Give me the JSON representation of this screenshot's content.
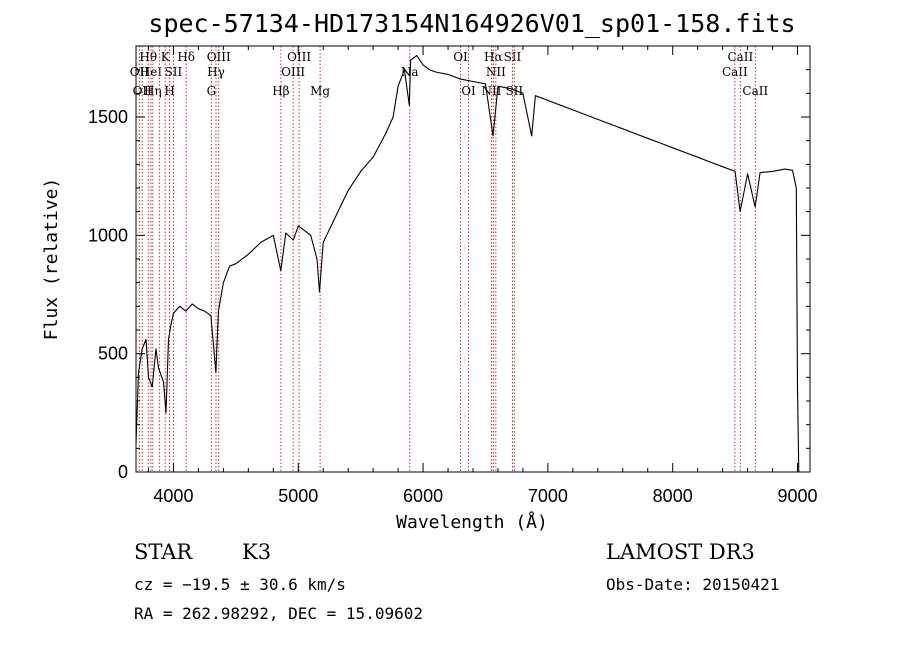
{
  "chart_data": {
    "type": "line",
    "title": "spec-57134-HD173154N164926V01_sp01-158.fits",
    "xlabel": "Wavelength (Å)",
    "ylabel": "Flux (relative)",
    "xlim": [
      3700,
      9100
    ],
    "ylim": [
      0,
      1800
    ],
    "xticks": [
      "4000",
      "5000",
      "6000",
      "7000",
      "8000",
      "9000"
    ],
    "yticks": [
      "0",
      "500",
      "1000",
      "1500"
    ],
    "grid": false,
    "series": [
      {
        "x": [
          3700,
          3720,
          3750,
          3780,
          3800,
          3830,
          3860,
          3880,
          3920,
          3940,
          3960,
          3980,
          4000,
          4050,
          4100,
          4150,
          4200,
          4250,
          4300,
          4340,
          4360,
          4400,
          4450,
          4500,
          4600,
          4700,
          4800,
          4860,
          4900,
          4960,
          5000,
          5050,
          5100,
          5150,
          5170,
          5200,
          5300,
          5400,
          5500,
          5600,
          5700,
          5760,
          5800,
          5850,
          5890,
          5900,
          5950,
          6000,
          6050,
          6100,
          6200,
          6300,
          6400,
          6500,
          6560,
          6600,
          6700,
          6800,
          6870,
          6900,
          7000,
          7100,
          7200,
          7300,
          7400,
          7500,
          7600,
          7700,
          7800,
          7900,
          8000,
          8100,
          8200,
          8300,
          8400,
          8500,
          8540,
          8600,
          8660,
          8700,
          8800,
          8900,
          8960,
          8990,
          9000,
          9010
        ],
        "y": [
          120,
          420,
          520,
          560,
          400,
          360,
          520,
          440,
          380,
          250,
          560,
          620,
          670,
          700,
          680,
          710,
          690,
          680,
          660,
          420,
          680,
          800,
          870,
          880,
          920,
          970,
          1000,
          850,
          1010,
          980,
          1040,
          1020,
          1000,
          900,
          760,
          970,
          1080,
          1190,
          1270,
          1330,
          1430,
          1500,
          1630,
          1700,
          1550,
          1740,
          1760,
          1720,
          1700,
          1690,
          1680,
          1660,
          1650,
          1640,
          1420,
          1630,
          1620,
          1600,
          1420,
          1590,
          1570,
          1550,
          1530,
          1510,
          1490,
          1470,
          1450,
          1430,
          1410,
          1390,
          1370,
          1350,
          1330,
          1310,
          1290,
          1270,
          1100,
          1260,
          1120,
          1265,
          1270,
          1280,
          1275,
          1200,
          350,
          0
        ]
      }
    ],
    "line_marks": [
      {
        "x": 3727,
        "text": "OII",
        "row": 2
      },
      {
        "x": 3750,
        "text": "OII",
        "row": 3
      },
      {
        "x": 3798,
        "text": "Hθ",
        "row": 1
      },
      {
        "x": 3820,
        "text": "HeI",
        "row": 2
      },
      {
        "x": 3835,
        "text": "Hη",
        "row": 3
      },
      {
        "x": 3889,
        "text": "",
        "row": 0
      },
      {
        "x": 3934,
        "text": "K",
        "row": 1
      },
      {
        "x": 3969,
        "text": "H",
        "row": 3
      },
      {
        "x": 4000,
        "text": "SII",
        "row": 2
      },
      {
        "x": 4102,
        "text": "Hδ",
        "row": 1
      },
      {
        "x": 4304,
        "text": "G",
        "row": 3
      },
      {
        "x": 4341,
        "text": "Hγ",
        "row": 2
      },
      {
        "x": 4363,
        "text": "OIII",
        "row": 1
      },
      {
        "x": 4861,
        "text": "Hβ",
        "row": 3
      },
      {
        "x": 4959,
        "text": "OIII",
        "row": 2
      },
      {
        "x": 5007,
        "text": "OIII",
        "row": 1
      },
      {
        "x": 5175,
        "text": "Mg",
        "row": 3
      },
      {
        "x": 5893,
        "text": "Na",
        "row": 2
      },
      {
        "x": 6300,
        "text": "OI",
        "row": 1
      },
      {
        "x": 6364,
        "text": "OI",
        "row": 3
      },
      {
        "x": 6548,
        "text": "NII",
        "row": 3
      },
      {
        "x": 6563,
        "text": "Hα",
        "row": 1
      },
      {
        "x": 6583,
        "text": "NII",
        "row": 2
      },
      {
        "x": 6716,
        "text": "SII",
        "row": 1
      },
      {
        "x": 6731,
        "text": "SII",
        "row": 3
      },
      {
        "x": 8498,
        "text": "CaII",
        "row": 2
      },
      {
        "x": 8542,
        "text": "CaII",
        "row": 1
      },
      {
        "x": 8662,
        "text": "CaII",
        "row": 3
      }
    ]
  },
  "footer": {
    "object_type": "STAR",
    "subclass": "K3",
    "survey": "LAMOST DR3",
    "redshift": "cz = −19.5 ± 30.6 km/s",
    "obs_date": "Obs-Date: 20150421",
    "coords": "RA = 262.98292, DEC =  15.09602"
  }
}
